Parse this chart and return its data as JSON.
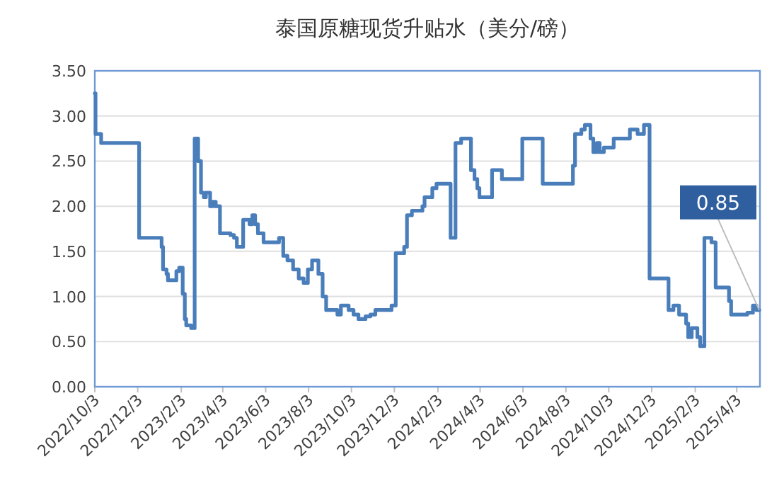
{
  "chart_data": {
    "type": "step",
    "title": "泰国原糖现货升贴水（美分/磅）",
    "x": [
      "2022-10-03",
      "2022-10-04",
      "2022-10-12",
      "2022-12-05",
      "2023-01-06",
      "2023-01-08",
      "2023-01-13",
      "2023-01-15",
      "2023-01-27",
      "2023-01-31",
      "2023-02-05",
      "2023-02-08",
      "2023-02-10",
      "2023-02-17",
      "2023-02-22",
      "2023-02-27",
      "2023-03-03",
      "2023-03-07",
      "2023-03-10",
      "2023-03-16",
      "2023-03-20",
      "2023-03-24",
      "2023-03-30",
      "2023-04-14",
      "2023-04-19",
      "2023-04-23",
      "2023-05-02",
      "2023-05-11",
      "2023-05-15",
      "2023-05-19",
      "2023-05-23",
      "2023-05-31",
      "2023-06-22",
      "2023-06-28",
      "2023-07-04",
      "2023-07-12",
      "2023-07-20",
      "2023-07-27",
      "2023-08-02",
      "2023-08-08",
      "2023-08-17",
      "2023-08-23",
      "2023-08-28",
      "2023-09-13",
      "2023-09-18",
      "2023-09-29",
      "2023-10-06",
      "2023-10-13",
      "2023-10-23",
      "2023-10-30",
      "2023-11-06",
      "2023-11-29",
      "2023-12-05",
      "2023-12-17",
      "2023-12-21",
      "2023-12-28",
      "2024-01-12",
      "2024-01-15",
      "2024-01-26",
      "2024-02-01",
      "2024-02-21",
      "2024-02-28",
      "2024-03-07",
      "2024-03-21",
      "2024-03-26",
      "2024-03-30",
      "2024-04-02",
      "2024-04-20",
      "2024-05-04",
      "2024-06-02",
      "2024-07-01",
      "2024-08-13",
      "2024-08-16",
      "2024-08-25",
      "2024-08-30",
      "2024-09-07",
      "2024-09-11",
      "2024-09-16",
      "2024-09-20",
      "2024-09-26",
      "2024-10-10",
      "2024-11-02",
      "2024-11-13",
      "2024-11-22",
      "2024-11-30",
      "2024-12-27",
      "2025-01-03",
      "2025-01-11",
      "2025-01-21",
      "2025-01-24",
      "2025-01-29",
      "2025-02-06",
      "2025-02-10",
      "2025-02-16",
      "2025-02-26",
      "2025-03-04",
      "2025-03-23",
      "2025-03-26",
      "2025-04-18",
      "2025-04-26",
      "2025-05-01",
      "2025-05-05"
    ],
    "series": [
      {
        "color": "#4a7ebb",
        "values": [
          3.25,
          2.8,
          2.7,
          1.65,
          1.55,
          1.3,
          1.25,
          1.18,
          1.28,
          1.32,
          1.03,
          0.75,
          0.68,
          0.65,
          2.75,
          2.5,
          2.15,
          2.1,
          2.15,
          2.0,
          2.05,
          2.0,
          1.7,
          1.68,
          1.65,
          1.55,
          1.85,
          1.8,
          1.9,
          1.8,
          1.7,
          1.6,
          1.65,
          1.45,
          1.4,
          1.3,
          1.2,
          1.15,
          1.3,
          1.4,
          1.25,
          1.0,
          0.85,
          0.8,
          0.9,
          0.85,
          0.8,
          0.75,
          0.78,
          0.8,
          0.85,
          0.9,
          1.48,
          1.55,
          1.9,
          1.95,
          2.0,
          2.1,
          2.2,
          2.25,
          1.65,
          2.7,
          2.75,
          2.4,
          2.3,
          2.2,
          2.1,
          2.4,
          2.3,
          2.75,
          2.25,
          2.45,
          2.8,
          2.85,
          2.9,
          2.75,
          2.6,
          2.7,
          2.6,
          2.65,
          2.75,
          2.85,
          2.8,
          2.9,
          1.2,
          0.85,
          0.9,
          0.8,
          0.7,
          0.55,
          0.65,
          0.55,
          0.45,
          1.65,
          1.6,
          1.1,
          0.95,
          0.8,
          0.82,
          0.9,
          0.85,
          0.85
        ]
      }
    ],
    "xlim": [
      "2022-10-03",
      "2025-05-06"
    ],
    "xticks": [
      {
        "value": "2022-10-03",
        "label": "2022/10/3"
      },
      {
        "value": "2022-12-03",
        "label": "2022/12/3"
      },
      {
        "value": "2023-02-03",
        "label": "2023/2/3"
      },
      {
        "value": "2023-04-03",
        "label": "2023/4/3"
      },
      {
        "value": "2023-06-03",
        "label": "2023/6/3"
      },
      {
        "value": "2023-08-03",
        "label": "2023/8/3"
      },
      {
        "value": "2023-10-03",
        "label": "2023/10/3"
      },
      {
        "value": "2023-12-03",
        "label": "2023/12/3"
      },
      {
        "value": "2024-02-03",
        "label": "2024/2/3"
      },
      {
        "value": "2024-04-03",
        "label": "2024/4/3"
      },
      {
        "value": "2024-06-03",
        "label": "2024/6/3"
      },
      {
        "value": "2024-08-03",
        "label": "2024/8/3"
      },
      {
        "value": "2024-10-03",
        "label": "2024/10/3"
      },
      {
        "value": "2024-12-03",
        "label": "2024/12/3"
      },
      {
        "value": "2025-02-03",
        "label": "2025/2/3"
      },
      {
        "value": "2025-04-03",
        "label": "2025/4/3"
      }
    ],
    "ylim": [
      0,
      3.5
    ],
    "yticks": [
      {
        "value": 0,
        "label": "0.00"
      },
      {
        "value": 0.5,
        "label": "0.50"
      },
      {
        "value": 1,
        "label": "1.00"
      },
      {
        "value": 1.5,
        "label": "1.50"
      },
      {
        "value": 2,
        "label": "2.00"
      },
      {
        "value": 2.5,
        "label": "2.50"
      },
      {
        "value": 3,
        "label": "3.00"
      },
      {
        "value": 3.5,
        "label": "3.50"
      }
    ],
    "grid": "y",
    "line_style": "solid",
    "marker": "none",
    "annotations": [
      {
        "text": "0.85",
        "x": "2025-05-05",
        "y": 0.85
      }
    ]
  }
}
